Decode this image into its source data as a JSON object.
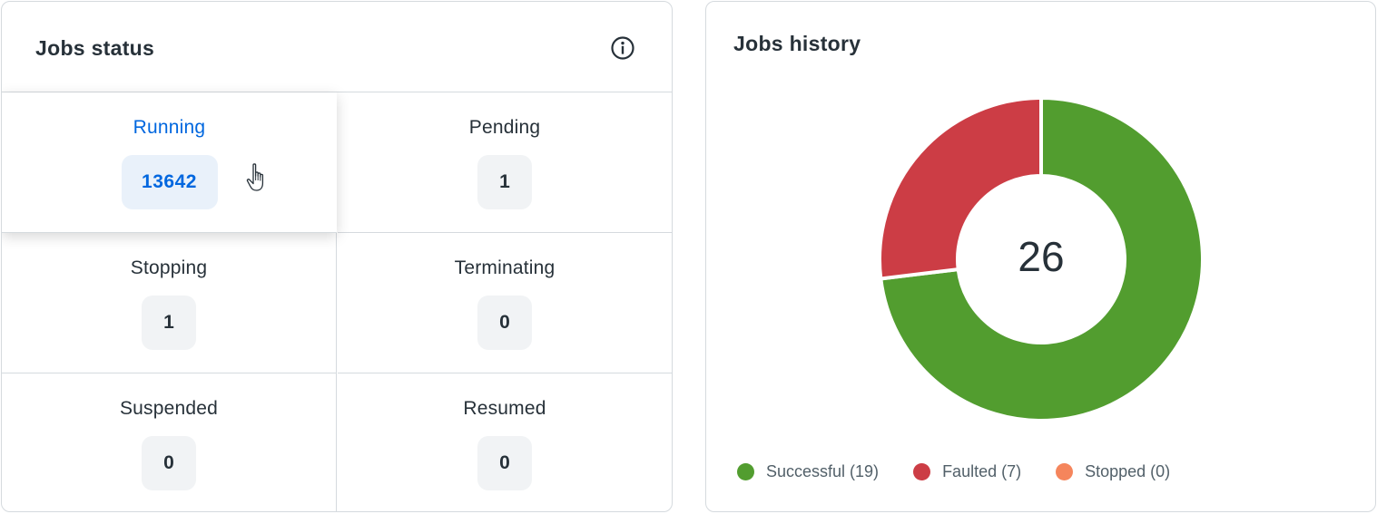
{
  "status_card": {
    "title": "Jobs status",
    "info_icon": "info-icon",
    "cells": [
      {
        "label": "Running",
        "count": "13642"
      },
      {
        "label": "Pending",
        "count": "1"
      },
      {
        "label": "Stopping",
        "count": "1"
      },
      {
        "label": "Terminating",
        "count": "0"
      },
      {
        "label": "Suspended",
        "count": "0"
      },
      {
        "label": "Resumed",
        "count": "0"
      }
    ],
    "hovered_cell": "Running",
    "colors": {
      "accent": "#0067df",
      "accent_bg": "#e9f1fa",
      "badge_bg": "#f1f3f5",
      "border": "#d5dade"
    }
  },
  "history_card": {
    "title": "Jobs history",
    "total": "26",
    "legend": [
      {
        "label": "Successful (19)",
        "color": "#529d2f"
      },
      {
        "label": "Faulted (7)",
        "color": "#cc3d45"
      },
      {
        "label": "Stopped (0)",
        "color": "#f5855c"
      }
    ]
  },
  "chart_data": {
    "type": "pie",
    "categories": [
      "Successful",
      "Faulted",
      "Stopped"
    ],
    "values": [
      19,
      7,
      0
    ],
    "colors": [
      "#529d2f",
      "#cc3d45",
      "#f5855c"
    ],
    "center_label": "26",
    "title": "Jobs history",
    "legend_position": "bottom-left"
  }
}
